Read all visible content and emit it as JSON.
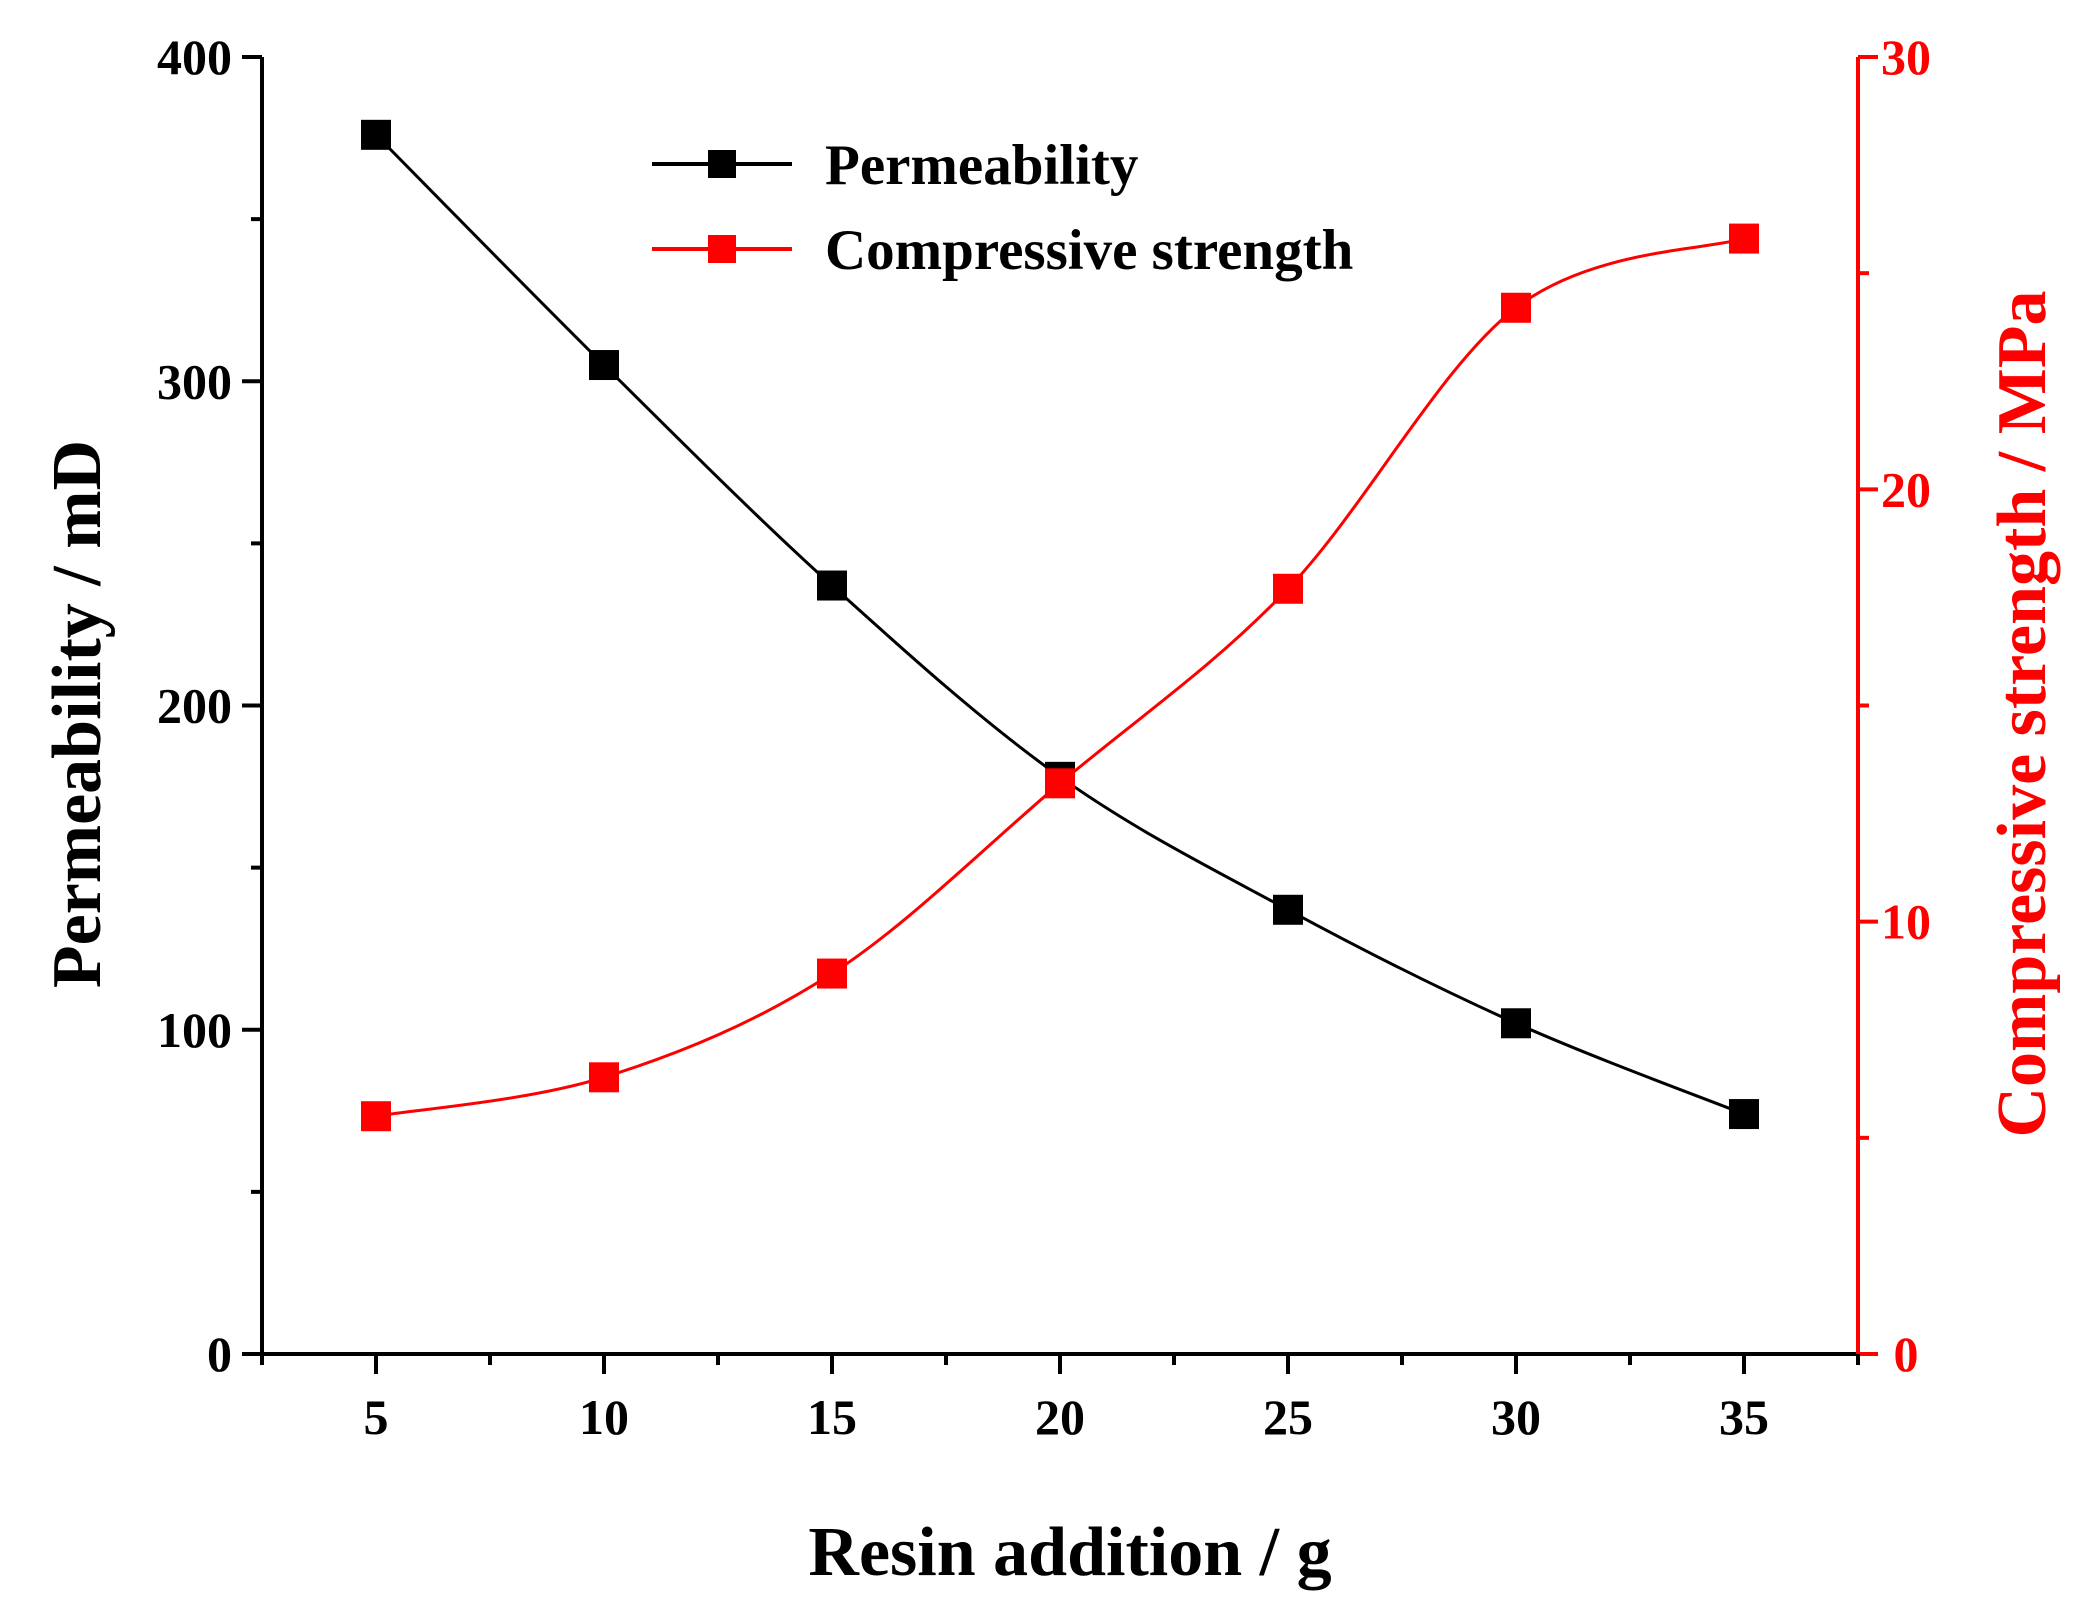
{
  "chart_data": {
    "type": "line",
    "title": "",
    "xlabel": "Resin addition / g",
    "ylabel": "Permeability / mD",
    "ylabel_right": "Compressive strength / MPa",
    "x": [
      5,
      10,
      15,
      20,
      25,
      30,
      35
    ],
    "xlim": [
      2.5,
      37.5
    ],
    "ylim": [
      0,
      400
    ],
    "ylim_right": [
      0,
      30
    ],
    "x_ticks": [
      5,
      10,
      15,
      20,
      25,
      30,
      35
    ],
    "y_ticks": [
      0,
      100,
      200,
      300,
      400
    ],
    "y_ticks_right": [
      0,
      10,
      20,
      30
    ],
    "grid": false,
    "legend": "top-center",
    "series": [
      {
        "name": "Permeability",
        "axis": "left",
        "color": "#000000",
        "marker": "square",
        "values": [
          376,
          305,
          237,
          178,
          137,
          102,
          74
        ]
      },
      {
        "name": "Compressive strength",
        "axis": "right",
        "color": "#ff0000",
        "marker": "square",
        "values": [
          5.5,
          6.4,
          8.8,
          13.2,
          17.7,
          24.2,
          25.8
        ]
      }
    ]
  }
}
